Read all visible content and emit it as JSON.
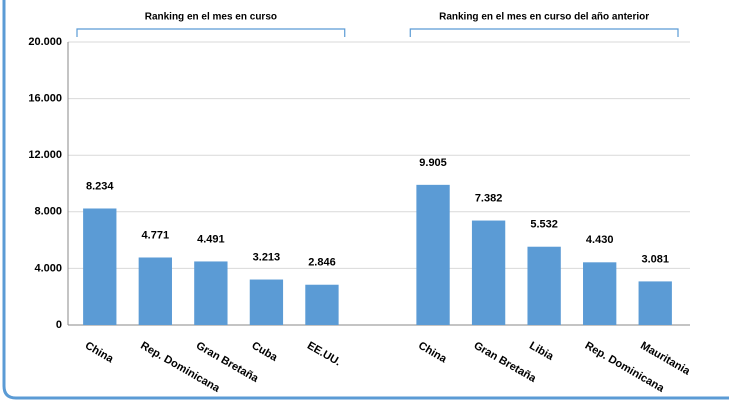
{
  "chart_data": {
    "type": "bar",
    "groups": [
      {
        "label": "Ranking en el mes en curso"
      },
      {
        "label": "Ranking en el mes en curso del año anterior"
      }
    ],
    "categories": [
      "China",
      "Rep. Dominicana",
      "Gran Bretaña",
      "Cuba",
      "EE.UU.",
      null,
      "China",
      "Gran Bretaña",
      "Libia",
      "Rep. Dominicana",
      "Mauritania"
    ],
    "values": [
      8234,
      4771,
      4491,
      3213,
      2846,
      null,
      9905,
      7382,
      5532,
      4430,
      3081
    ],
    "value_labels": [
      "8.234",
      "4.771",
      "4.491",
      "3.213",
      "2.846",
      null,
      "9.905",
      "7.382",
      "5.532",
      "4.430",
      "3.081"
    ],
    "color": "#5b9bd5",
    "ylim": [
      0,
      20000
    ],
    "yticks": [
      0,
      {
        "value": 4000,
        "label": "4.000"
      },
      {
        "value": 8000,
        "label": "8.000"
      },
      {
        "value": 12000,
        "label": "12.000"
      },
      {
        "value": 16000,
        "label": "16.000"
      },
      {
        "value": 20000,
        "label": "20.000"
      }
    ],
    "grid": true
  }
}
